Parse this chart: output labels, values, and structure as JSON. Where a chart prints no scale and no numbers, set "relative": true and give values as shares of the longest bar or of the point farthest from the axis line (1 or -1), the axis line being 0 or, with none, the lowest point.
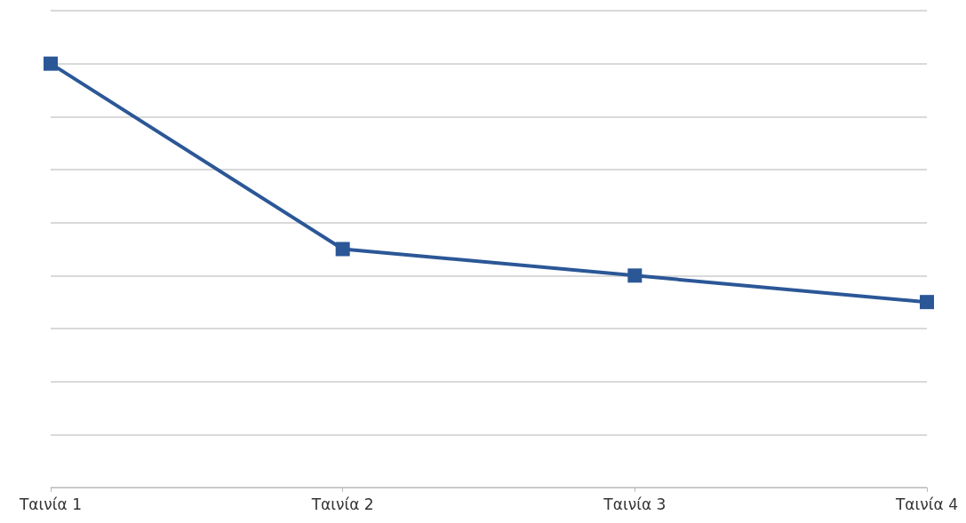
{
  "chart_data": {
    "type": "line",
    "categories": [
      "Ταινία 1",
      "Ταινία 2",
      "Ταινία 3",
      "Ταινία 4"
    ],
    "series": [
      {
        "color": "#2b5797",
        "values": [
          1,
          0.5625,
          0.5,
          0.4375
        ]
      }
    ],
    "relative": true,
    "grid": "y",
    "marker": "square",
    "line_style": "solid"
  }
}
